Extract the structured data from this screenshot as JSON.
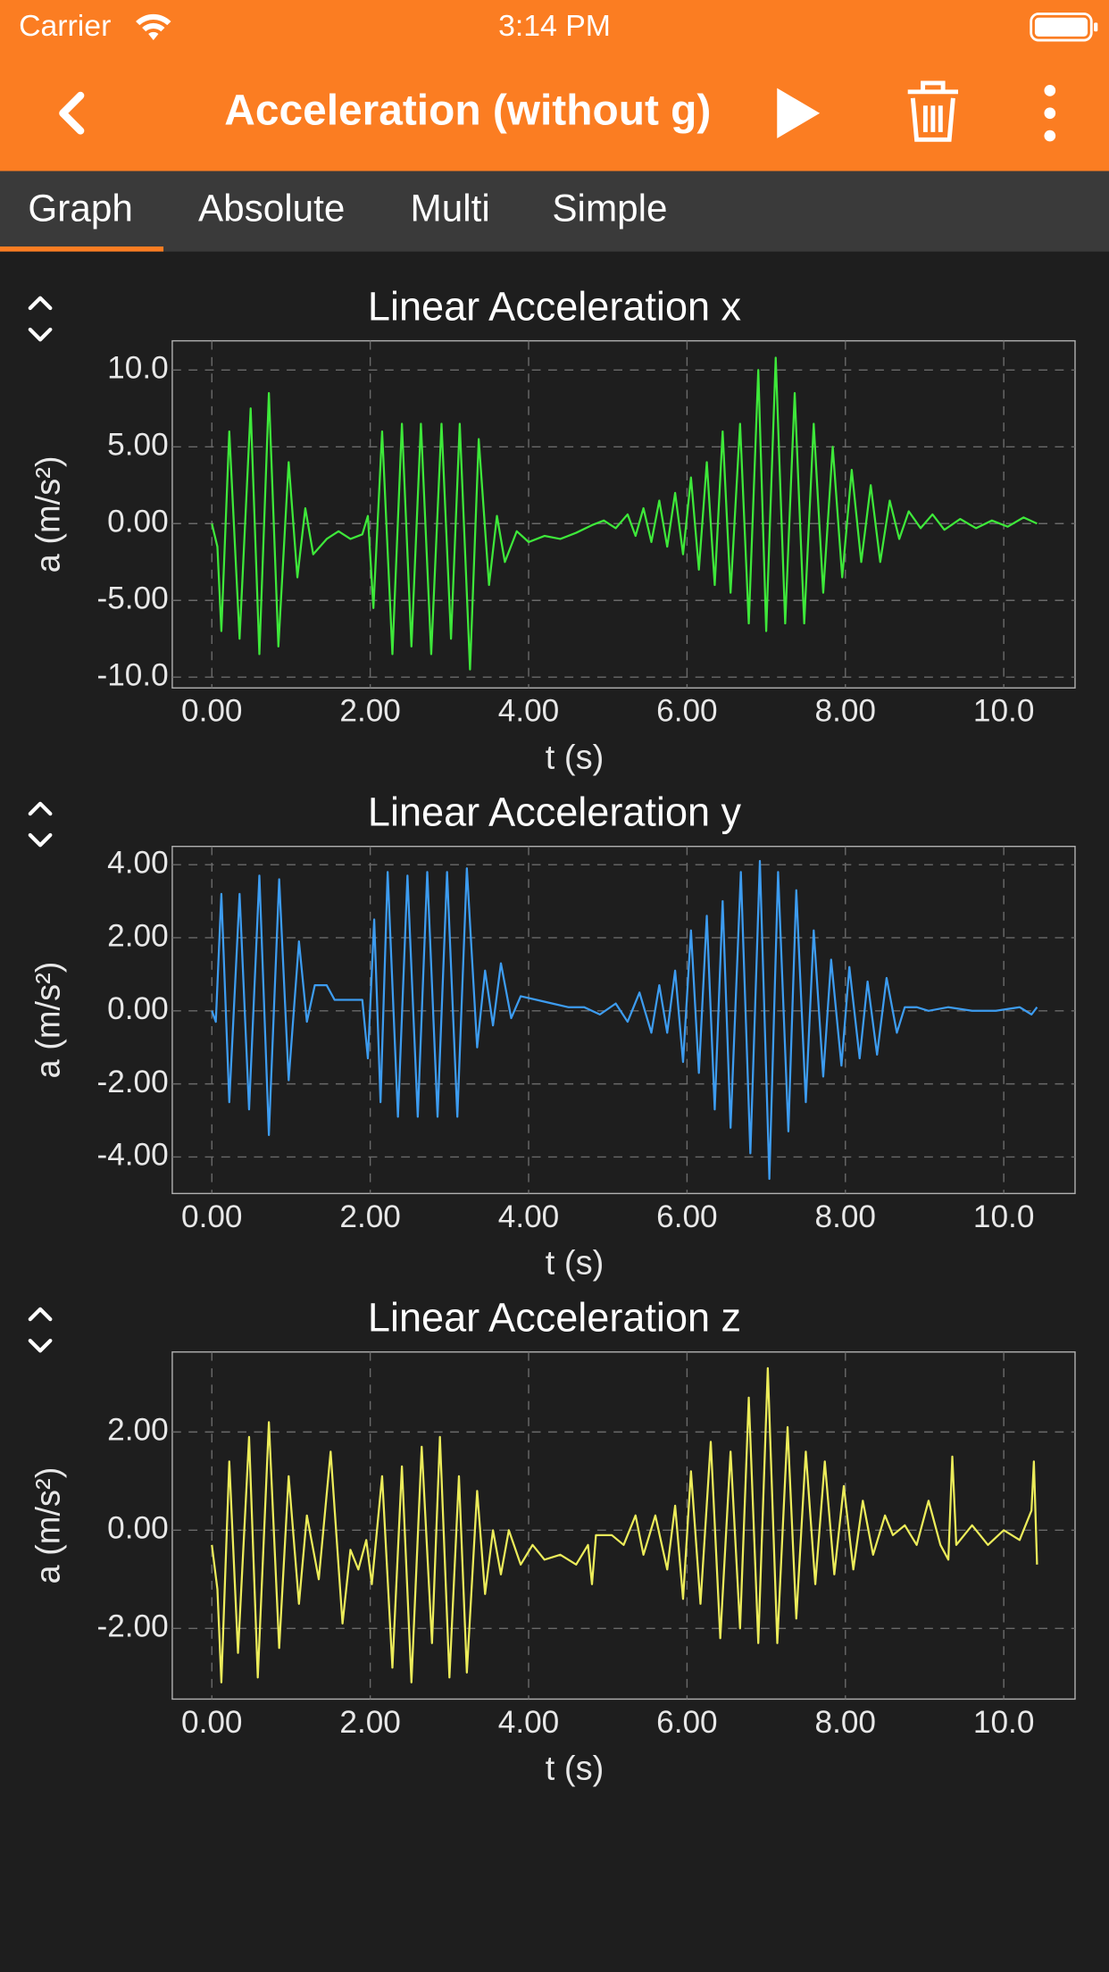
{
  "status_bar": {
    "carrier": "Carrier",
    "time": "3:14 PM"
  },
  "header": {
    "title": "Acceleration (without g)"
  },
  "tabs": [
    "Graph",
    "Absolute",
    "Multi",
    "Simple"
  ],
  "chart_data": [
    {
      "type": "line",
      "title": "Linear Acceleration x",
      "xlabel": "t (s)",
      "ylabel": "a (m/s²)",
      "x": [
        0,
        0.07,
        0.12,
        0.22,
        0.35,
        0.49,
        0.6,
        0.72,
        0.84,
        0.97,
        1.08,
        1.18,
        1.28,
        1.45,
        1.6,
        1.75,
        1.9,
        1.97,
        2.04,
        2.15,
        2.28,
        2.4,
        2.52,
        2.64,
        2.77,
        2.9,
        3.02,
        3.13,
        3.26,
        3.37,
        3.5,
        3.6,
        3.7,
        3.85,
        4.0,
        4.2,
        4.4,
        4.6,
        4.8,
        4.95,
        5.1,
        5.25,
        5.35,
        5.45,
        5.55,
        5.65,
        5.75,
        5.85,
        5.95,
        6.05,
        6.15,
        6.25,
        6.35,
        6.45,
        6.55,
        6.67,
        6.78,
        6.9,
        7.0,
        7.12,
        7.24,
        7.36,
        7.48,
        7.6,
        7.72,
        7.84,
        7.96,
        8.08,
        8.2,
        8.32,
        8.44,
        8.56,
        8.68,
        8.8,
        8.95,
        9.1,
        9.25,
        9.45,
        9.65,
        9.85,
        10.05,
        10.25,
        10.42
      ],
      "series": [
        {
          "color": "#3ee83a",
          "values": [
            0,
            -1.5,
            -7,
            6,
            -7.5,
            7.5,
            -8.5,
            8.5,
            -8,
            4,
            -3.5,
            1,
            -2,
            -1,
            -0.5,
            -1,
            -0.7,
            0.5,
            -5.5,
            6,
            -8.5,
            6.5,
            -8,
            6.5,
            -8.5,
            6.5,
            -7.5,
            6.5,
            -9.5,
            5.5,
            -4,
            0.5,
            -2.5,
            -0.5,
            -1.2,
            -0.8,
            -1,
            -0.6,
            -0.1,
            0.2,
            -0.3,
            0.6,
            -0.8,
            1,
            -1.2,
            1.5,
            -1.5,
            2,
            -2,
            3,
            -3,
            4,
            -4,
            6,
            -4.5,
            6.5,
            -6.5,
            10,
            -7,
            10.8,
            -6.5,
            8.5,
            -6.5,
            6.5,
            -4.5,
            5,
            -3.5,
            3.5,
            -2.5,
            2.5,
            -2.5,
            1.5,
            -1,
            0.8,
            -0.3,
            0.6,
            -0.4,
            0.3,
            -0.3,
            0.2,
            -0.2,
            0.4,
            0
          ]
        }
      ],
      "xlim": [
        -0.5,
        10.9
      ],
      "ylim": [
        -10.7,
        11.9
      ],
      "xticks": [
        {
          "value": 0,
          "label": "0.00"
        },
        {
          "value": 2,
          "label": "2.00"
        },
        {
          "value": 4,
          "label": "4.00"
        },
        {
          "value": 6,
          "label": "6.00"
        },
        {
          "value": 8,
          "label": "8.00"
        },
        {
          "value": 10,
          "label": "10.0"
        }
      ],
      "yticks": [
        {
          "value": -10,
          "label": "-10.0"
        },
        {
          "value": -5,
          "label": "-5.00"
        },
        {
          "value": 0,
          "label": "0.00"
        },
        {
          "value": 5,
          "label": "5.00"
        },
        {
          "value": 10,
          "label": "10.0"
        }
      ],
      "grid": true
    },
    {
      "type": "line",
      "title": "Linear Acceleration y",
      "xlabel": "t (s)",
      "ylabel": "a (m/s²)",
      "x": [
        0,
        0.05,
        0.12,
        0.22,
        0.35,
        0.47,
        0.6,
        0.72,
        0.85,
        0.97,
        1.1,
        1.2,
        1.3,
        1.45,
        1.55,
        1.7,
        1.9,
        1.97,
        2.05,
        2.13,
        2.22,
        2.35,
        2.47,
        2.6,
        2.72,
        2.85,
        2.97,
        3.1,
        3.22,
        3.35,
        3.45,
        3.55,
        3.65,
        3.78,
        3.9,
        4.1,
        4.3,
        4.5,
        4.7,
        4.9,
        5.1,
        5.25,
        5.4,
        5.55,
        5.65,
        5.75,
        5.85,
        5.95,
        6.05,
        6.15,
        6.25,
        6.35,
        6.45,
        6.55,
        6.68,
        6.8,
        6.92,
        7.04,
        7.15,
        7.28,
        7.38,
        7.5,
        7.6,
        7.72,
        7.82,
        7.95,
        8.05,
        8.18,
        8.28,
        8.4,
        8.52,
        8.65,
        8.75,
        8.9,
        9.05,
        9.3,
        9.6,
        9.9,
        10.2,
        10.35,
        10.42
      ],
      "series": [
        {
          "color": "#3d9cf0",
          "values": [
            0,
            -0.3,
            3.2,
            -2.5,
            3.2,
            -2.7,
            3.7,
            -3.4,
            3.6,
            -1.9,
            1.9,
            -0.3,
            0.7,
            0.7,
            0.3,
            0.3,
            0.3,
            -1.3,
            2.5,
            -2.5,
            3.8,
            -2.9,
            3.7,
            -2.9,
            3.8,
            -2.9,
            3.8,
            -2.9,
            3.9,
            -1,
            1.1,
            -0.4,
            1.3,
            -0.2,
            0.4,
            0.3,
            0.2,
            0.1,
            0.1,
            -0.1,
            0.2,
            -0.3,
            0.5,
            -0.6,
            0.7,
            -0.6,
            1.1,
            -1.4,
            2.2,
            -1.7,
            2.6,
            -2.7,
            3,
            -3.2,
            3.8,
            -3.9,
            4.1,
            -4.6,
            3.8,
            -3.3,
            3.3,
            -2.5,
            2.2,
            -1.8,
            1.4,
            -1.5,
            1.2,
            -1.3,
            0.8,
            -1.2,
            0.9,
            -0.6,
            0.1,
            0.1,
            0,
            0.1,
            0,
            0,
            0.1,
            -0.1,
            0.1
          ]
        }
      ],
      "xlim": [
        -0.5,
        10.9
      ],
      "ylim": [
        -5.0,
        4.5
      ],
      "xticks": [
        {
          "value": 0,
          "label": "0.00"
        },
        {
          "value": 2,
          "label": "2.00"
        },
        {
          "value": 4,
          "label": "4.00"
        },
        {
          "value": 6,
          "label": "6.00"
        },
        {
          "value": 8,
          "label": "8.00"
        },
        {
          "value": 10,
          "label": "10.0"
        }
      ],
      "yticks": [
        {
          "value": -4,
          "label": "-4.00"
        },
        {
          "value": -2,
          "label": "-2.00"
        },
        {
          "value": 0,
          "label": "0.00"
        },
        {
          "value": 2,
          "label": "2.00"
        },
        {
          "value": 4,
          "label": "4.00"
        }
      ],
      "grid": true
    },
    {
      "type": "line",
      "title": "Linear Acceleration z",
      "xlabel": "t (s)",
      "ylabel": "a (m/s²)",
      "x": [
        0,
        0.07,
        0.12,
        0.22,
        0.33,
        0.47,
        0.58,
        0.72,
        0.85,
        0.97,
        1.1,
        1.2,
        1.35,
        1.5,
        1.65,
        1.75,
        1.85,
        1.95,
        2.02,
        2.15,
        2.28,
        2.4,
        2.52,
        2.65,
        2.78,
        2.88,
        3.0,
        3.12,
        3.22,
        3.35,
        3.45,
        3.55,
        3.65,
        3.75,
        3.9,
        4.05,
        4.2,
        4.4,
        4.6,
        4.75,
        4.8,
        4.85,
        5.05,
        5.2,
        5.35,
        5.45,
        5.6,
        5.75,
        5.85,
        5.95,
        6.05,
        6.17,
        6.3,
        6.42,
        6.55,
        6.67,
        6.78,
        6.9,
        7.02,
        7.14,
        7.27,
        7.38,
        7.5,
        7.62,
        7.74,
        7.86,
        7.98,
        8.1,
        8.22,
        8.35,
        8.5,
        8.6,
        8.75,
        8.9,
        9.05,
        9.2,
        9.3,
        9.35,
        9.4,
        9.6,
        9.8,
        10.0,
        10.2,
        10.35,
        10.38,
        10.42
      ],
      "series": [
        {
          "color": "#ecec5a",
          "values": [
            -0.3,
            -1.2,
            -3.1,
            1.4,
            -2.5,
            1.9,
            -3,
            2.2,
            -2.4,
            1.1,
            -1.5,
            0.3,
            -1,
            1.6,
            -1.9,
            -0.4,
            -0.8,
            -0.2,
            -1.1,
            1.1,
            -2.8,
            1.3,
            -3.1,
            1.7,
            -2.3,
            1.9,
            -3,
            1.1,
            -2.9,
            0.8,
            -1.3,
            0,
            -0.9,
            0,
            -0.7,
            -0.3,
            -0.6,
            -0.5,
            -0.7,
            -0.3,
            -1.1,
            -0.1,
            -0.1,
            -0.3,
            0.3,
            -0.5,
            0.3,
            -0.8,
            0.5,
            -1.4,
            1.2,
            -1.5,
            1.8,
            -2.2,
            1.6,
            -2,
            2.7,
            -2.3,
            3.3,
            -2.3,
            2.1,
            -1.8,
            1.6,
            -1.1,
            1.4,
            -0.9,
            0.9,
            -0.8,
            0.6,
            -0.5,
            0.3,
            -0.1,
            0.1,
            -0.3,
            0.6,
            -0.3,
            -0.6,
            1.5,
            -0.3,
            0.1,
            -0.3,
            0,
            -0.2,
            0.4,
            1.4,
            -0.7
          ]
        }
      ],
      "xlim": [
        -0.5,
        10.9
      ],
      "ylim": [
        -3.44,
        3.63
      ],
      "xticks": [
        {
          "value": 0,
          "label": "0.00"
        },
        {
          "value": 2,
          "label": "2.00"
        },
        {
          "value": 4,
          "label": "4.00"
        },
        {
          "value": 6,
          "label": "6.00"
        },
        {
          "value": 8,
          "label": "8.00"
        },
        {
          "value": 10,
          "label": "10.0"
        }
      ],
      "yticks": [
        {
          "value": -2,
          "label": "-2.00"
        },
        {
          "value": 0,
          "label": "0.00"
        },
        {
          "value": 2,
          "label": "2.00"
        }
      ],
      "grid": true
    }
  ]
}
